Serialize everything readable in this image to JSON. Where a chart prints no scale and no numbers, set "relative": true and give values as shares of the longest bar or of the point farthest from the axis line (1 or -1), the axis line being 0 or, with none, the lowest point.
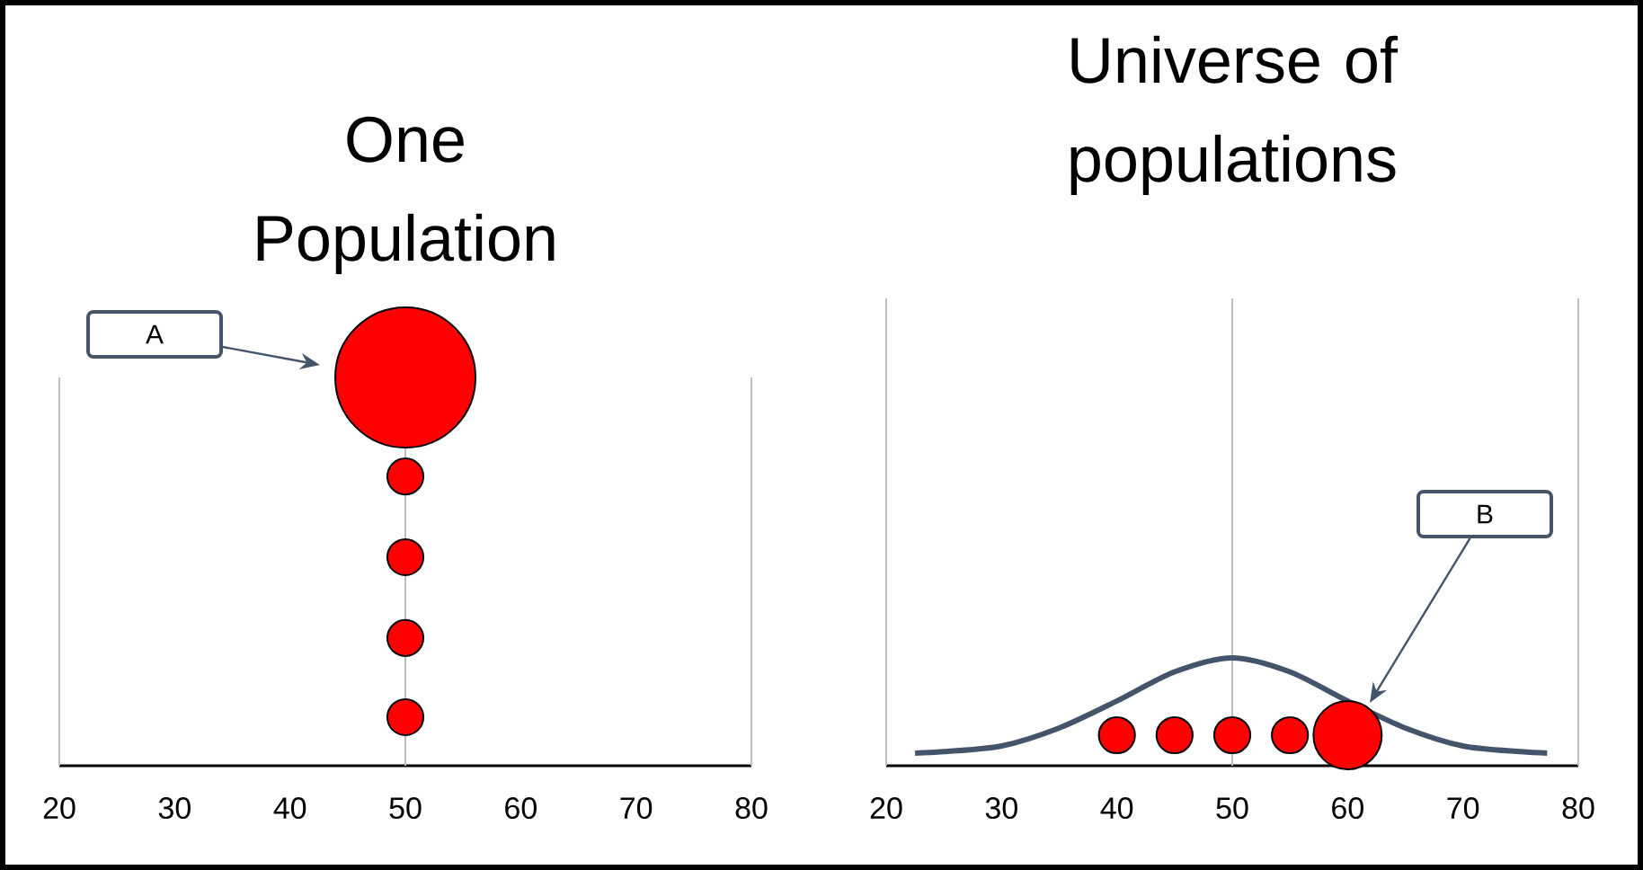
{
  "chart_data": [
    {
      "type": "bubble",
      "title": "One Population",
      "relative": true,
      "xlim": [
        20,
        80
      ],
      "xticks": [
        20,
        30,
        40,
        50,
        60,
        70,
        80
      ],
      "series": [
        {
          "color": "#ff0000",
          "x": [
            50,
            50,
            50,
            50,
            50
          ],
          "values": [
            0.125,
            0.329,
            0.537,
            0.745,
            1
          ],
          "sizes": [
            0.066,
            0.066,
            0.066,
            0.066,
            1
          ]
        }
      ],
      "ref_lines": [
        {
          "axis": "x",
          "value": 50,
          "color": "#bfbfbf"
        }
      ],
      "annotations": [
        "A"
      ]
    },
    {
      "type": "bubble",
      "title": "Universe of populations",
      "relative": true,
      "xlim": [
        20,
        80
      ],
      "xticks": [
        20,
        30,
        40,
        50,
        60,
        70,
        80
      ],
      "ref_lines": [
        {
          "axis": "x",
          "value": 50,
          "color": "#bfbfbf"
        }
      ],
      "series": [
        {
          "type": "line",
          "color": "#44546a",
          "x": [
            22.5,
            25,
            30,
            35,
            40,
            45,
            50,
            55,
            60,
            65,
            70,
            75,
            77.3
          ],
          "values": [
            0.117,
            0.13,
            0.183,
            0.35,
            0.6,
            0.87,
            1,
            0.87,
            0.6,
            0.35,
            0.183,
            0.13,
            0.117
          ]
        },
        {
          "color": "#ff0000",
          "x": [
            40,
            45,
            50,
            55,
            60
          ],
          "values": [
            0.283,
            0.283,
            0.283,
            0.283,
            0.283
          ],
          "sizes": [
            0.28,
            0.28,
            0.28,
            0.28,
            1
          ]
        }
      ],
      "annotations": [
        "B"
      ]
    }
  ]
}
